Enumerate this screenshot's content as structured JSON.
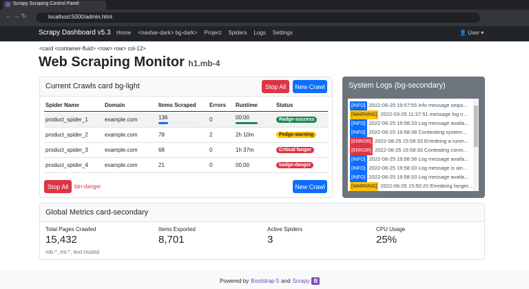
{
  "browser": {
    "tab_title": "Scrapy Scraping Control Panel",
    "url": "localhost:5000/admin.html"
  },
  "navbar": {
    "brand": "Scrapy Dashboard v5.3",
    "links": [
      "Home",
      "<navbar-dark> bg-dark>",
      "Project",
      "Spiders",
      "Logs",
      "Settings"
    ],
    "user": "User"
  },
  "breadcrumb": "<card <container-fluid> <row> row> col-12>",
  "heading": {
    "title": "Web Scraping Monitor",
    "small": "h1.mb-4"
  },
  "crawls": {
    "title": "Current Crawls card bg-light",
    "stop_button": "Stop All",
    "new_button": "New Crawl",
    "columns": [
      "Spider Name",
      "Domain",
      "Items Scraped",
      "Errors",
      "Runtime",
      "Status"
    ],
    "rows": [
      [
        "product_spider_1",
        "example.com",
        "136",
        "0",
        "00:00",
        "Radge-success"
      ],
      [
        "product_spider_2",
        "example.com",
        "78",
        "2",
        "2h 10m",
        "Pedge-warning"
      ],
      [
        "product_spider_3",
        "example.com",
        "68",
        "0",
        "1h 37m",
        "Critical fanger"
      ],
      [
        "product_spider_4",
        "example.com",
        "21",
        "0",
        "00:00",
        "badge-danger"
      ]
    ],
    "footer_stop": "Stop All",
    "footer_note": "btn-danger",
    "footer_new": "New Crawl"
  },
  "logs": {
    "title": "System Logs (bg-secondary)",
    "entries": [
      {
        "level": "[INFO]",
        "text": "2022-06-25 19:57:55 Info message sequi..."
      },
      {
        "level": "[WARNING]",
        "text": "2022-03-25 11:37:51 message log n..."
      },
      {
        "level": "[INFO]",
        "text": "2022-06-25 19:58:33 Log message availa..."
      },
      {
        "level": "[INFO]",
        "text": "2022-06-25 19:58:38 Contieating system..."
      },
      {
        "level": "[ERROR]",
        "text": "2022-08-25 15:58:33 Erredeing a runm..."
      },
      {
        "level": "[ERROR]",
        "text": "2022-06-25 15:58:33 Conteating conm..."
      },
      {
        "level": "[INFO]",
        "text": "2022-06-25 19:58:36 Log message availa..."
      },
      {
        "level": "[INFO]",
        "text": "2022-06-25 19:58:33 Log message is ain..."
      },
      {
        "level": "[INFO]",
        "text": "2022-06-25 19:58:33 Log message availa..."
      },
      {
        "level": "[WARNING]",
        "text": "2022-06-25 15:50:20 Erredeing fanger..."
      }
    ]
  },
  "metrics": {
    "title": "Global Metrics card-secondary",
    "items": [
      {
        "label": "Total Pages Crawled",
        "value": "15,432"
      },
      {
        "label": "Items Exported",
        "value": "8,701"
      },
      {
        "label": "Active Spiders",
        "value": "3"
      },
      {
        "label": "CPU Usage",
        "value": "25%"
      }
    ],
    "note": "mb-*, mt-*, text-muted"
  },
  "footer": {
    "prefix": "Powered by",
    "link1": "Bootstrap 5",
    "and": "and",
    "link2": "Scrapy",
    "icon": "B"
  }
}
